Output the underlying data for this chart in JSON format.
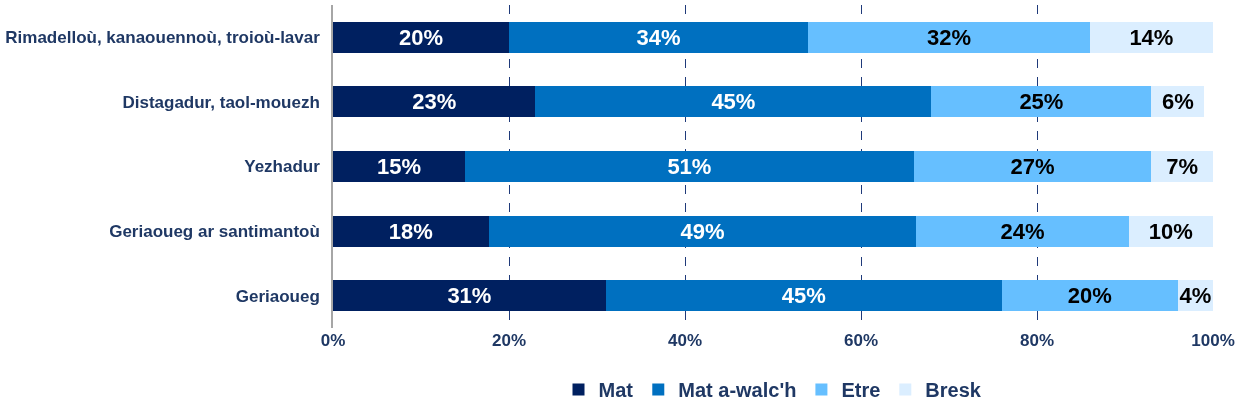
{
  "chart_data": {
    "type": "bar",
    "orientation": "horizontal",
    "stacked": true,
    "categories": [
      "Rimadelloù, kanaouennoù, troioù-lavar",
      "Distagadur, taol-mouezh",
      "Yezhadur",
      "Geriaoueg ar santimantoù",
      "Geriaoueg"
    ],
    "series": [
      {
        "name": "Mat",
        "color": "#002060",
        "values": [
          20,
          23,
          15,
          17.7,
          31
        ],
        "value_labels": [
          "20%",
          "23%",
          "15%",
          "18%",
          "31%"
        ]
      },
      {
        "name": "Mat a-walc'h",
        "color": "#0070c0",
        "values": [
          34,
          45,
          51,
          48.6,
          45
        ],
        "value_labels": [
          "34%",
          "45%",
          "51%",
          "49%",
          "45%"
        ]
      },
      {
        "name": "Etre",
        "color": "#66bfff",
        "values": [
          32,
          25,
          27,
          24.1,
          20
        ],
        "value_labels": [
          "32%",
          "25%",
          "27%",
          "24%",
          "20%"
        ]
      },
      {
        "name": "Bresk",
        "color": "#dbeeff",
        "values": [
          14,
          6,
          7,
          9.6,
          4
        ],
        "value_labels": [
          "14%",
          "6%",
          "7%",
          "10%",
          "4%"
        ]
      }
    ],
    "xlim": [
      0,
      100
    ],
    "xticks": [
      {
        "value": 0,
        "label": "0%"
      },
      {
        "value": 20,
        "label": "20%"
      },
      {
        "value": 40,
        "label": "40%"
      },
      {
        "value": 60,
        "label": "60%"
      },
      {
        "value": 80,
        "label": "80%"
      },
      {
        "value": 100,
        "label": "100%"
      }
    ],
    "grid": "x",
    "legend": "bottom"
  }
}
